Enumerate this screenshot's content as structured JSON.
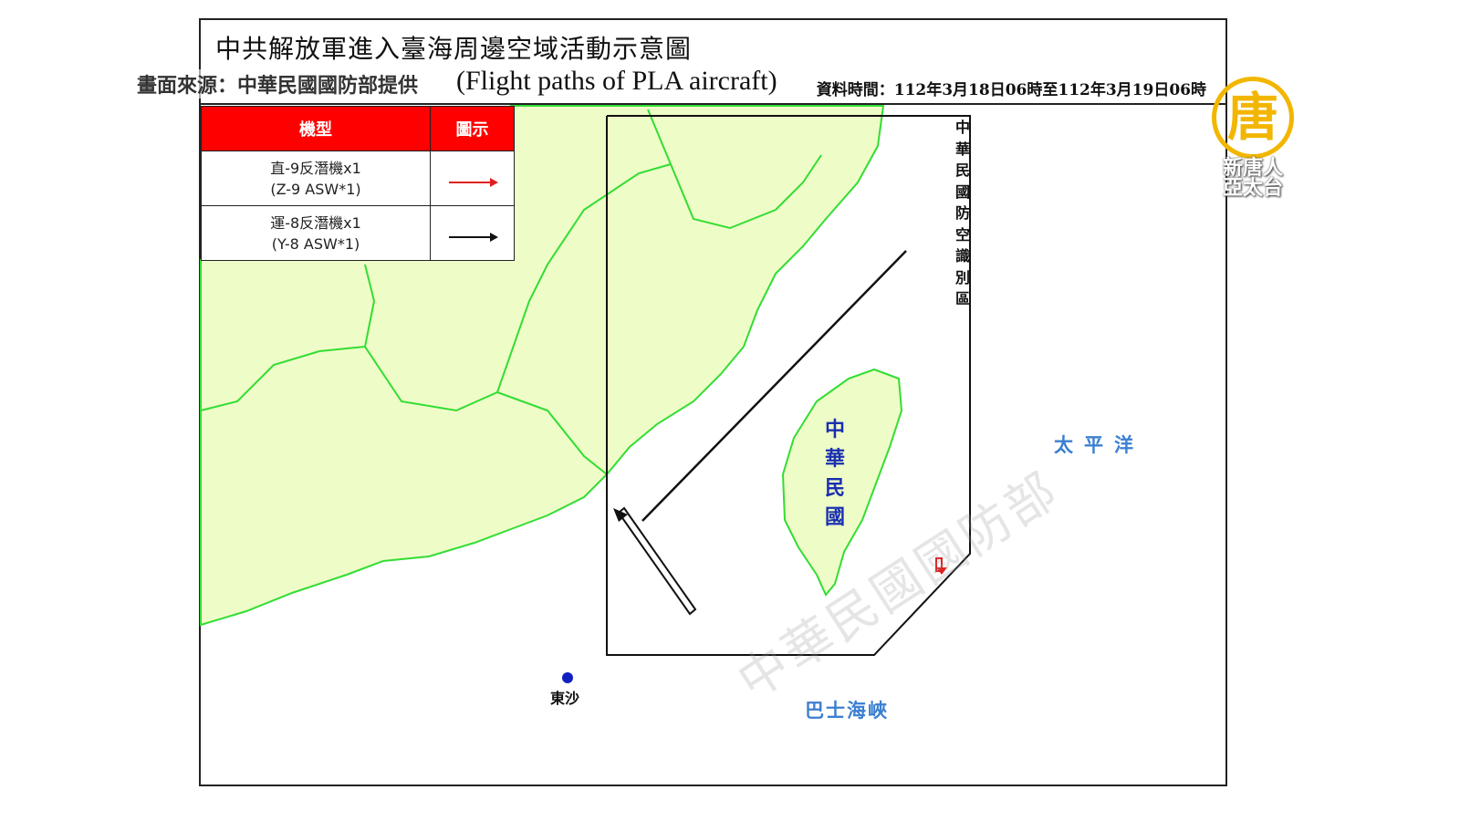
{
  "header": {
    "title": "中共解放軍進入臺海周邊空域活動示意圖",
    "subtitle": "(Flight paths of PLA aircraft)",
    "source_overlay": "畫面來源：中華民國國防部提供",
    "data_time": "資料時間：112年3月18日06時至112年3月19日06時"
  },
  "legend": {
    "col_type": "機型",
    "col_icon": "圖示",
    "rows": [
      {
        "name_zh": "直-9反潛機x1",
        "name_en": "(Z-9 ASW*1)",
        "color": "#e02020"
      },
      {
        "name_zh": "運-8反潛機x1",
        "name_en": "(Y-8 ASW*1)",
        "color": "#111111"
      }
    ]
  },
  "map": {
    "adiz_label": "中華民國防空識別區",
    "taiwan_label": "中華民國",
    "pacific_label": "太平洋",
    "bashi_label": "巴士海峽",
    "dongsha_label": "東沙",
    "watermark": "中華民國國防部",
    "land_color": "#eefcc8",
    "border_color": "#33dd33"
  },
  "logo": {
    "glyph": "唐",
    "line1": "新唐人",
    "line2": "亞太台",
    "color": "#f2b600"
  }
}
